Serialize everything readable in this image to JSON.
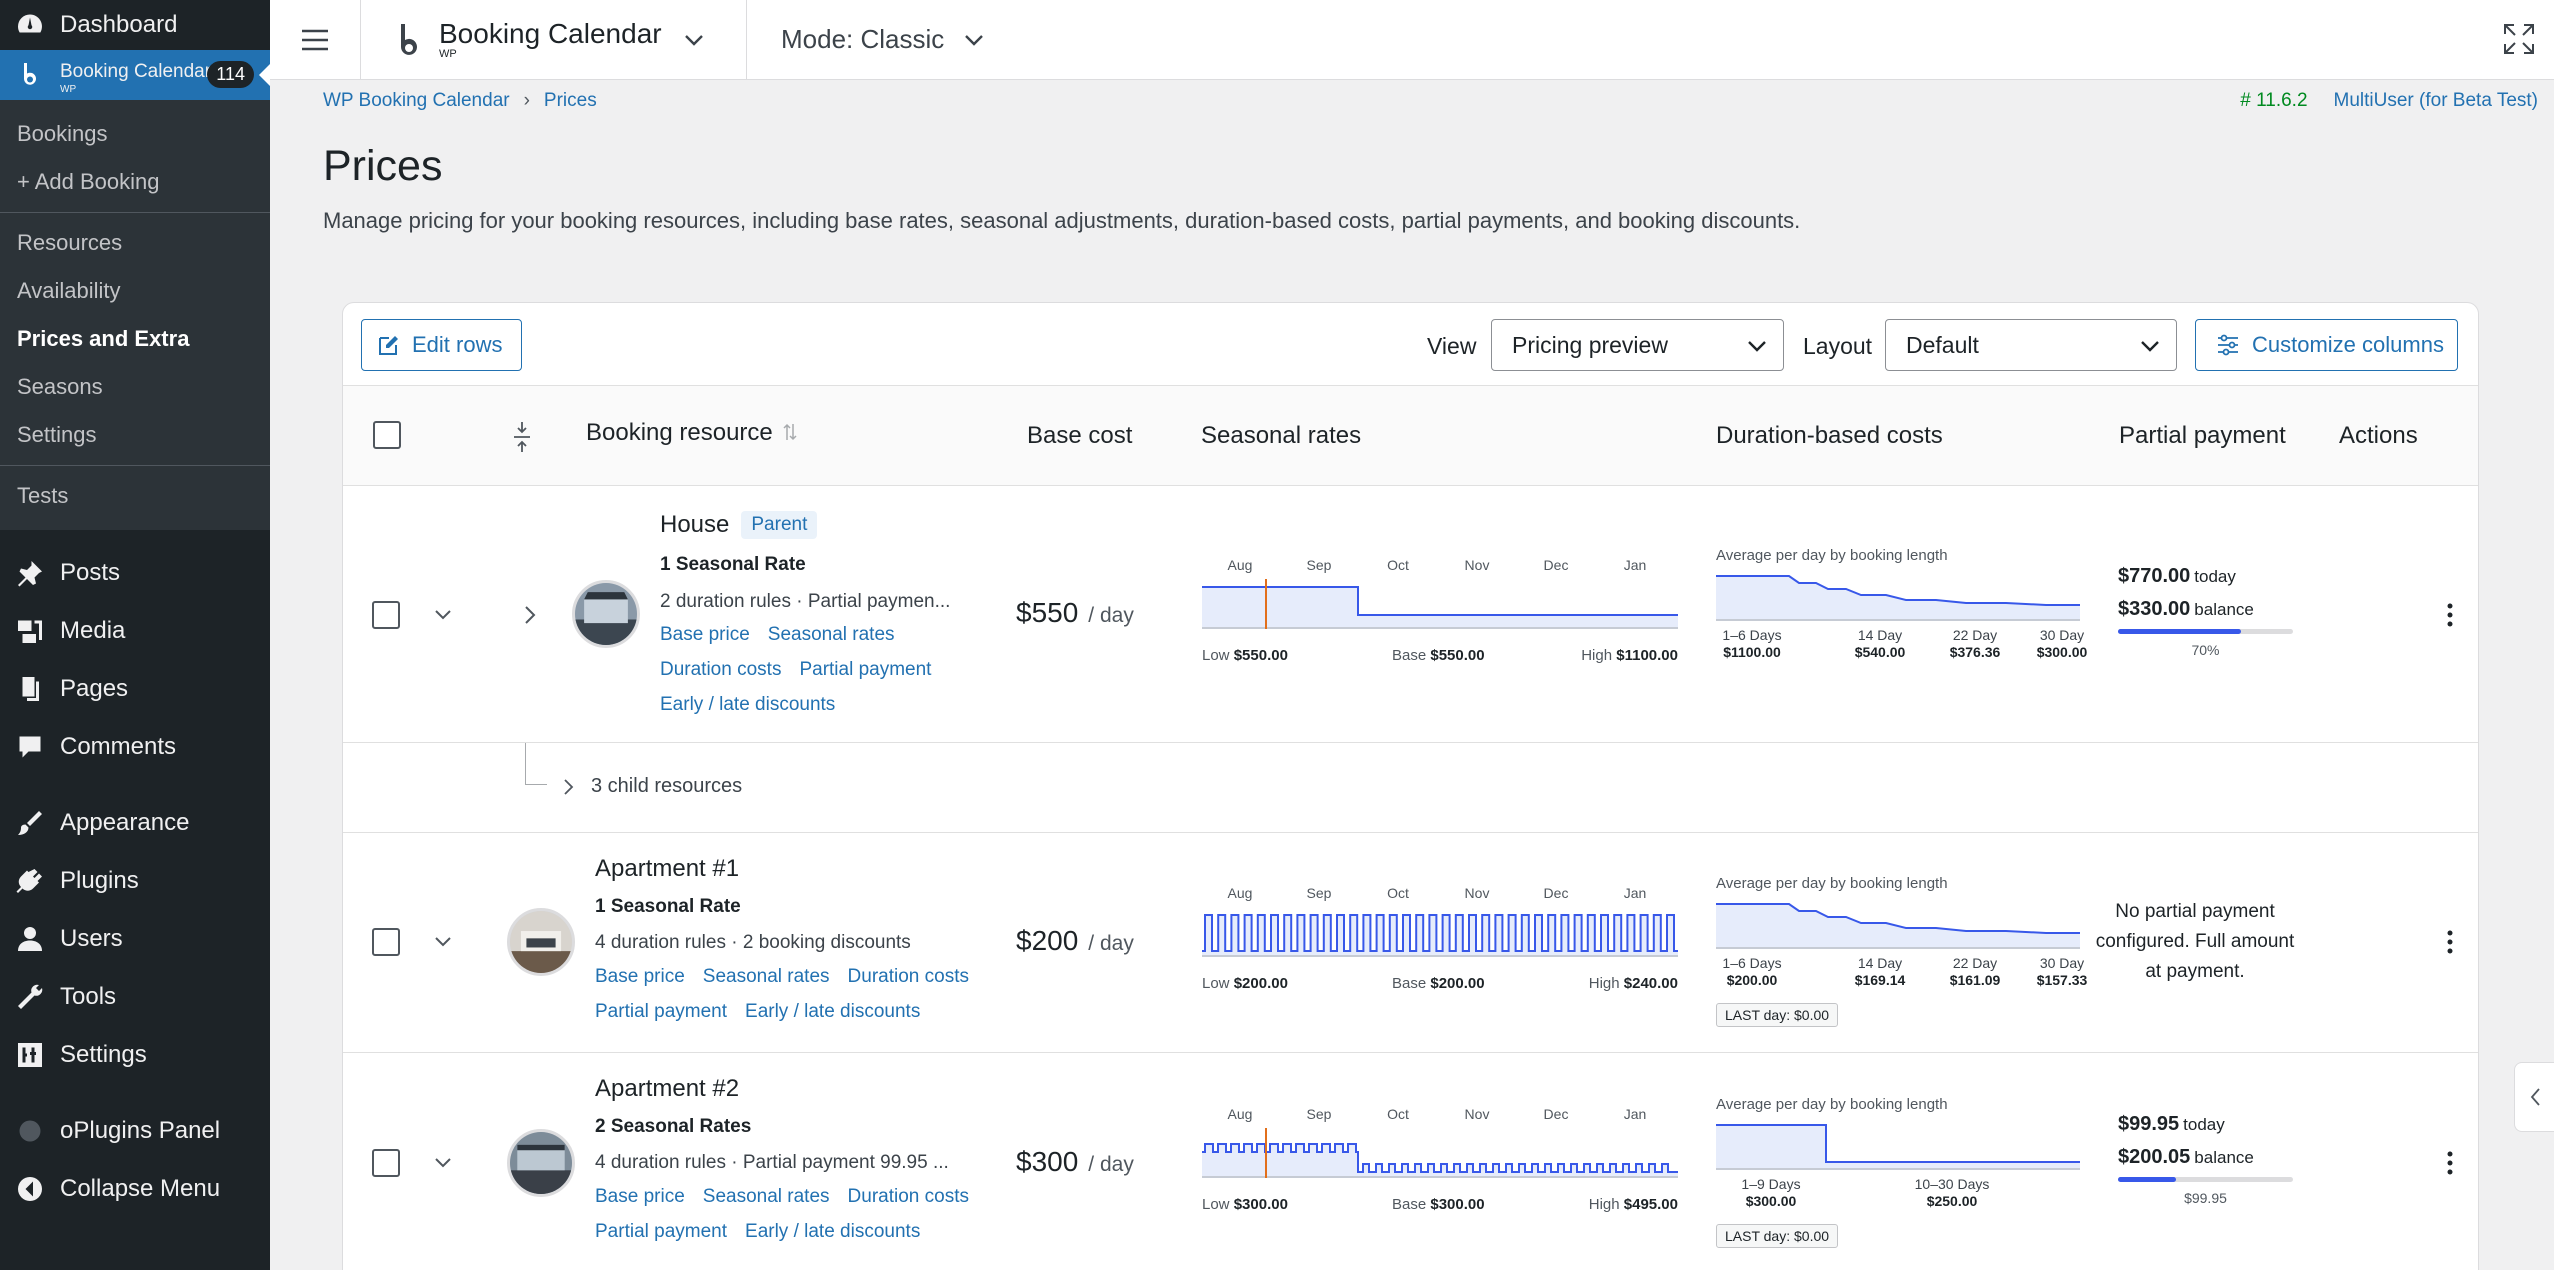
{
  "admin_menu": {
    "dashboard": "Dashboard",
    "plugin": {
      "title": "Booking Calendar",
      "sub": "WP",
      "badge": "114"
    },
    "sub_items": [
      "Bookings",
      "+ Add Booking"
    ],
    "sub_items2": [
      "Resources",
      "Availability",
      "Prices and Extra",
      "Seasons",
      "Settings"
    ],
    "tests": "Tests",
    "items": [
      "Posts",
      "Media",
      "Pages",
      "Comments",
      "Appearance",
      "Plugins",
      "Users",
      "Tools",
      "Settings"
    ],
    "oplugins": "oPlugins Panel",
    "collapse": "Collapse Menu"
  },
  "topbar": {
    "brand": "Booking Calendar",
    "brand_sub": "WP",
    "mode": "Mode: Classic"
  },
  "breadcrumb": {
    "root": "WP Booking Calendar",
    "current": "Prices"
  },
  "version": {
    "number": "# 11.6.2",
    "edition": "MultiUser (for Beta Test)"
  },
  "page": {
    "title": "Prices",
    "description": "Manage pricing for your booking resources, including base rates, seasonal adjustments, duration-based costs, partial payments, and booking discounts."
  },
  "toolbar": {
    "edit_rows": "Edit rows",
    "view_label": "View",
    "view_value": "Pricing preview",
    "layout_label": "Layout",
    "layout_value": "Default",
    "customize": "Customize columns"
  },
  "columns": {
    "resource": "Booking resource",
    "base": "Base cost",
    "seasonal": "Seasonal rates",
    "duration": "Duration-based costs",
    "partial": "Partial payment",
    "actions": "Actions"
  },
  "months": [
    "Aug",
    "Sep",
    "Oct",
    "Nov",
    "Dec",
    "Jan"
  ],
  "duration_title": "Average per day by booking length",
  "rows": [
    {
      "name": "House",
      "badge": "Parent",
      "seasonal_count": "1 Seasonal Rate",
      "meta": "2 duration rules · Partial paymen...",
      "links": [
        "Base price",
        "Seasonal rates",
        "Duration costs",
        "Partial payment",
        "Early / late discounts"
      ],
      "cost": "$550",
      "unit": "/ day",
      "season": {
        "low_label": "Low",
        "low": "$550.00",
        "base_label": "Base",
        "base": "$550.00",
        "high_label": "High",
        "high": "$1100.00"
      },
      "duration": [
        {
          "label": "1–6 Days",
          "value": "$1100.00"
        },
        {
          "label": "14 Day",
          "value": "$540.00"
        },
        {
          "label": "22 Day",
          "value": "$376.36"
        },
        {
          "label": "30 Day",
          "value": "$300.00"
        }
      ],
      "partial": {
        "today": "$770.00",
        "today_label": "today",
        "balance": "$330.00",
        "balance_label": "balance",
        "percent": 70,
        "caption": "70%"
      }
    },
    {
      "name": "Apartment #1",
      "seasonal_count": "1 Seasonal Rate",
      "meta": "4 duration rules · 2 booking discounts",
      "links": [
        "Base price",
        "Seasonal rates",
        "Duration costs",
        "Partial payment",
        "Early / late discounts"
      ],
      "cost": "$200",
      "unit": "/ day",
      "season": {
        "low_label": "Low",
        "low": "$200.00",
        "base_label": "Base",
        "base": "$200.00",
        "high_label": "High",
        "high": "$240.00"
      },
      "duration": [
        {
          "label": "1–6 Days",
          "value": "$200.00"
        },
        {
          "label": "14 Day",
          "value": "$169.14"
        },
        {
          "label": "22 Day",
          "value": "$161.09"
        },
        {
          "label": "30 Day",
          "value": "$157.33"
        }
      ],
      "last_day": "LAST day: $0.00",
      "no_partial": "No partial payment configured. Full amount at payment."
    },
    {
      "name": "Apartment #2",
      "seasonal_count": "2 Seasonal Rates",
      "meta": "4 duration rules · Partial payment 99.95 ...",
      "links": [
        "Base price",
        "Seasonal rates",
        "Duration costs",
        "Partial payment",
        "Early / late discounts"
      ],
      "cost": "$300",
      "unit": "/ day",
      "season": {
        "low_label": "Low",
        "low": "$300.00",
        "base_label": "Base",
        "base": "$300.00",
        "high_label": "High",
        "high": "$495.00"
      },
      "duration": [
        {
          "label": "1–9 Days",
          "value": "$300.00"
        },
        {
          "label": "10–30 Days",
          "value": "$250.00"
        }
      ],
      "last_day": "LAST day: $0.00",
      "partial": {
        "today": "$99.95",
        "today_label": "today",
        "balance": "$200.05",
        "balance_label": "balance",
        "percent": 33,
        "caption": "$99.95"
      }
    }
  ],
  "child_resources": "3 child resources"
}
